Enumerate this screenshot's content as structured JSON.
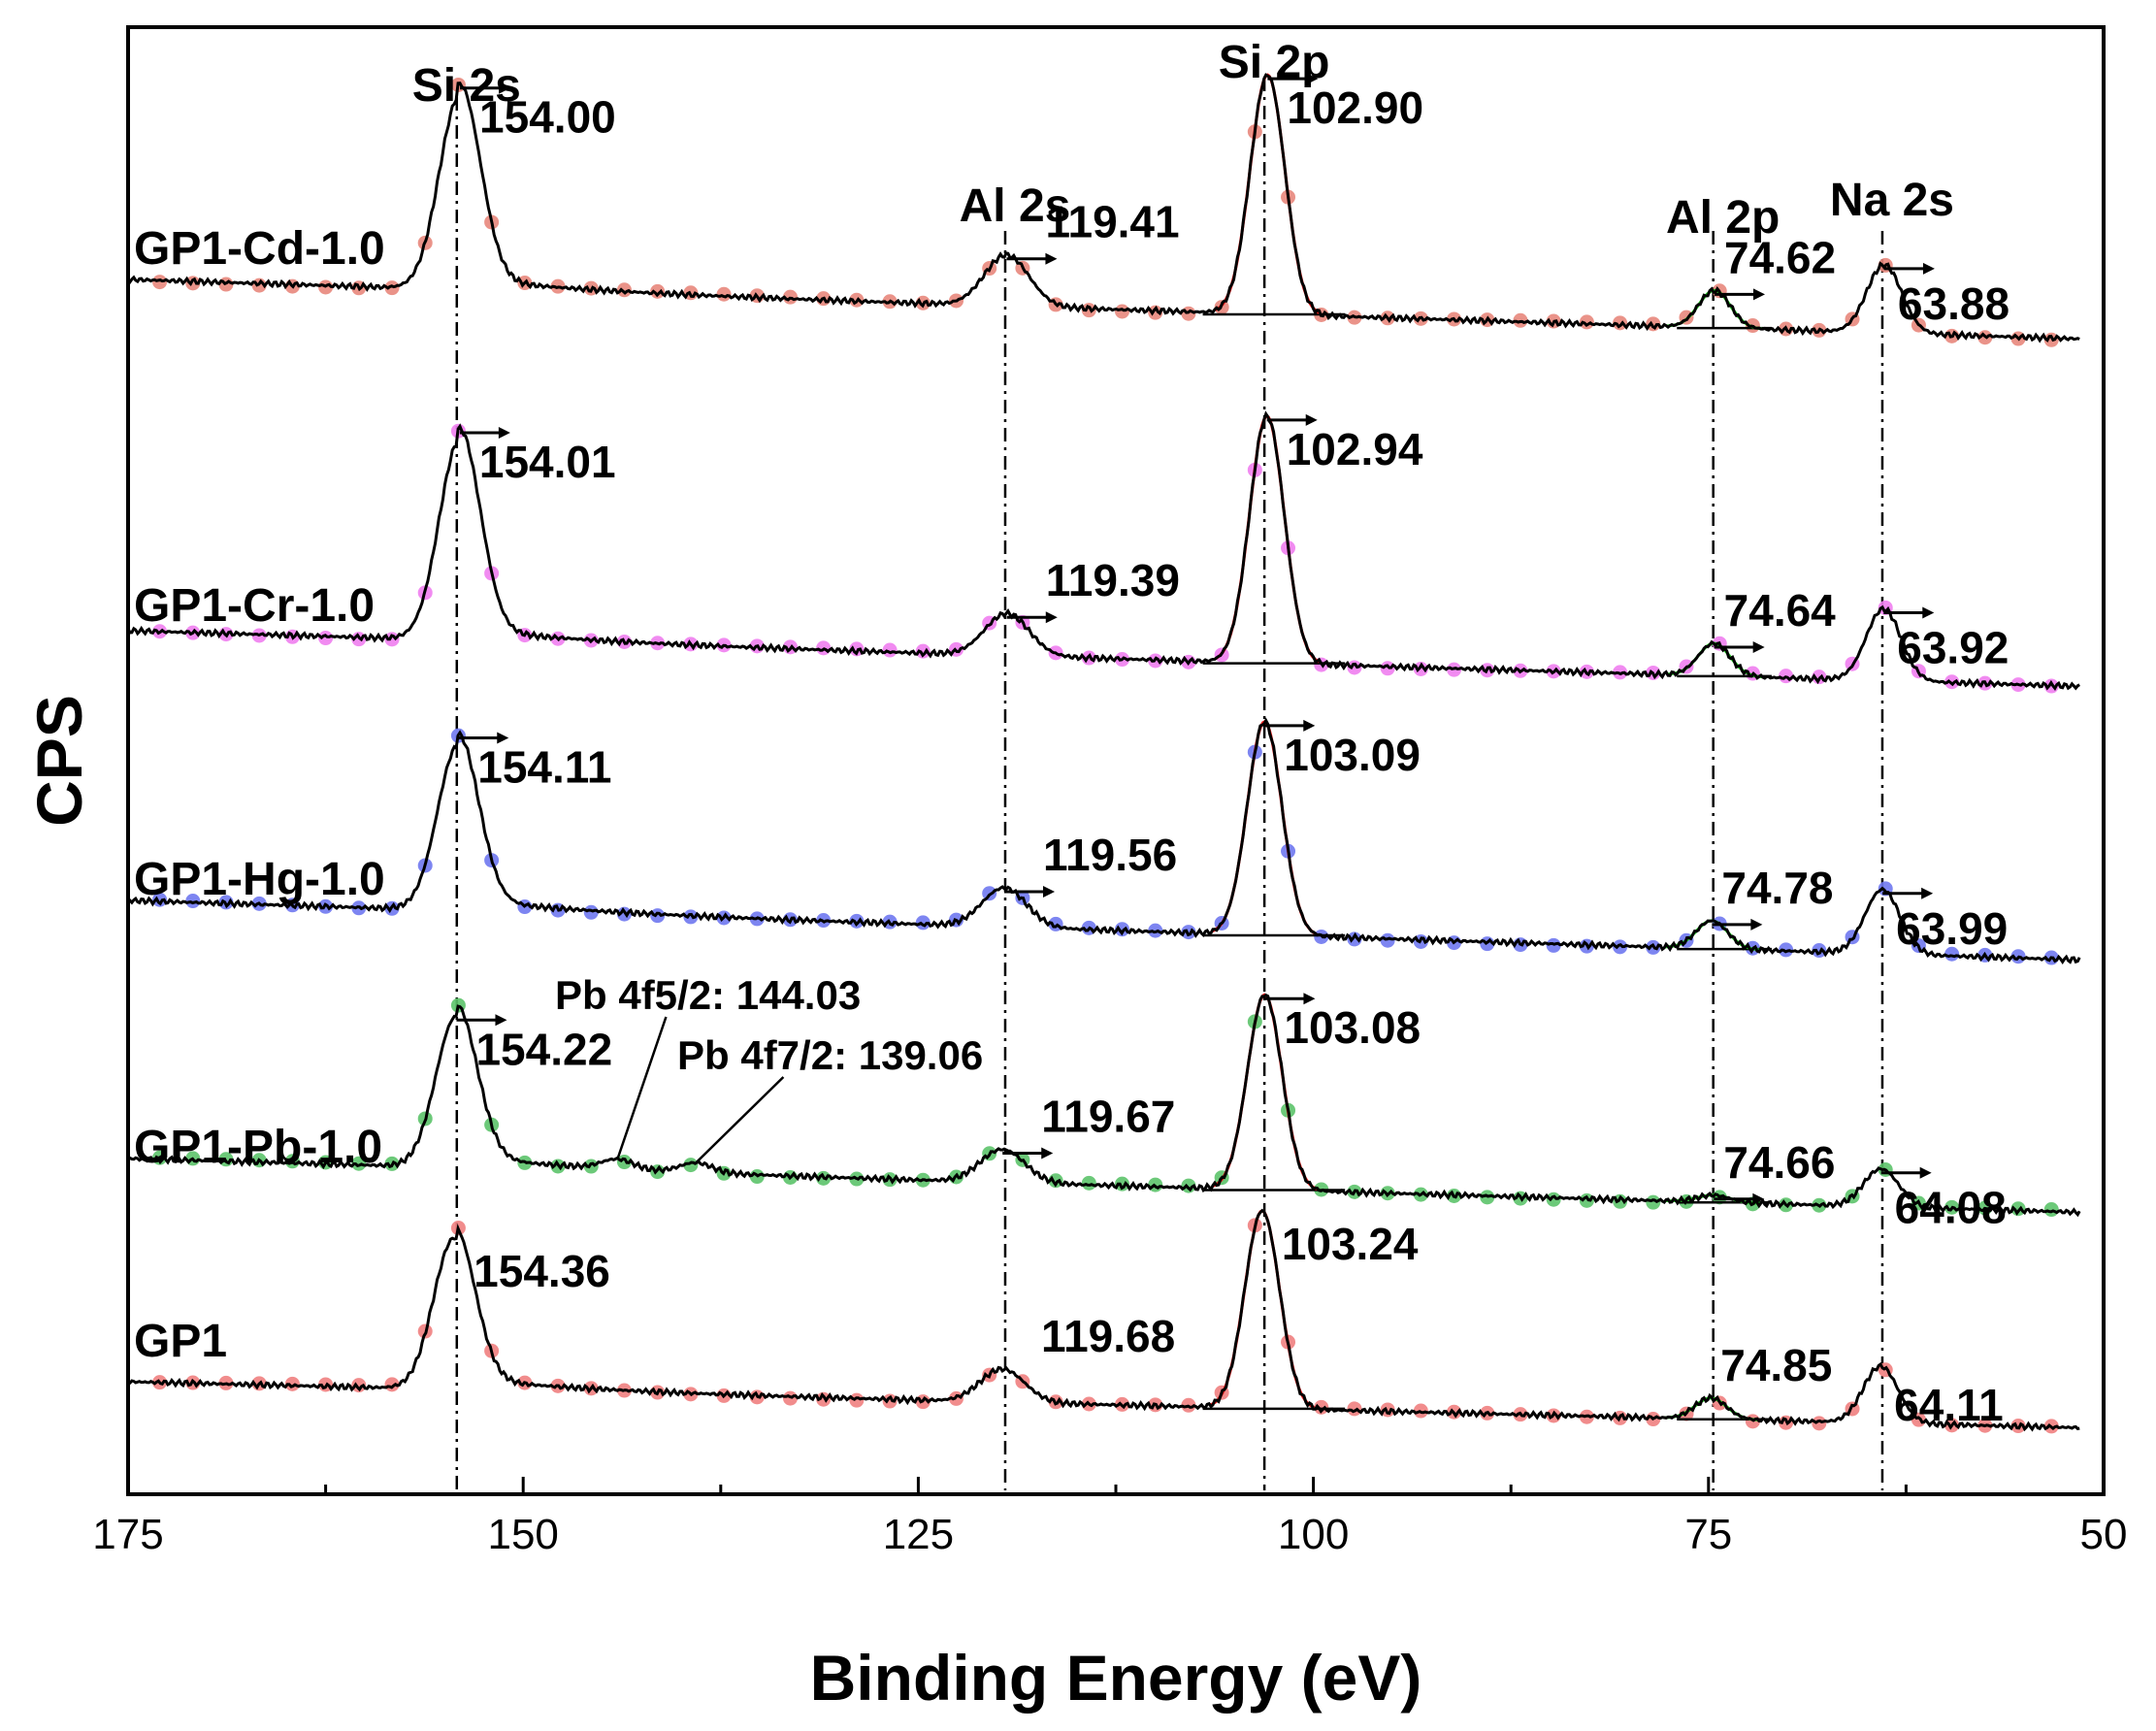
{
  "chart_data": {
    "type": "line",
    "title": "",
    "xlabel": "Binding Energy (eV)",
    "ylabel": "CPS",
    "xlim": [
      175,
      50
    ],
    "reversed_x": true,
    "x_ticks": [
      "175",
      "150",
      "125",
      "100",
      "75",
      "50"
    ],
    "grid": false,
    "peak_labels": [
      {
        "name": "Si 2s",
        "x": 154.2
      },
      {
        "name": "Al 2s",
        "x": 119.5
      },
      {
        "name": "Si 2p",
        "x": 103.1
      },
      {
        "name": "Al 2p",
        "x": 74.7
      },
      {
        "name": "Na 2s",
        "x": 64.0
      }
    ],
    "series": [
      {
        "name": "GP1-Cd-1.0",
        "color": "#a50f15",
        "marker_color": "#e8877c",
        "si2s": 154.0,
        "si2s_label": "154.00",
        "al2s": 119.41,
        "al2s_label": "119.41",
        "si2p": 102.9,
        "si2p_label": "102.90",
        "al2p": 74.62,
        "al2p_label": "74.62",
        "na2s": 63.88,
        "na2s_label": "63.88"
      },
      {
        "name": "GP1-Cr-1.0",
        "color": "#ff33ff",
        "marker_color": "#f07ef0",
        "si2s": 154.01,
        "si2s_label": "154.01",
        "al2s": 119.39,
        "al2s_label": "119.39",
        "si2p": 102.94,
        "si2p_label": "102.94",
        "al2p": 74.64,
        "al2p_label": "74.64",
        "na2s": 63.92,
        "na2s_label": "63.92"
      },
      {
        "name": "GP1-Hg-1.0",
        "color": "#1f1fff",
        "marker_color": "#6f78f0",
        "si2s": 154.11,
        "si2s_label": "154.11",
        "al2s": 119.56,
        "al2s_label": "119.56",
        "si2p": 103.09,
        "si2p_label": "103.09",
        "al2p": 74.78,
        "al2p_label": "74.78",
        "na2s": 63.99,
        "na2s_label": "63.99"
      },
      {
        "name": "GP1-Pb-1.0",
        "color": "#1a9a1a",
        "marker_color": "#5cc36a",
        "si2s": 154.22,
        "si2s_label": "154.22",
        "al2s": 119.67,
        "al2s_label": "119.67",
        "si2p": 103.08,
        "si2p_label": "103.08",
        "al2p": 74.66,
        "al2p_label": "74.66",
        "na2s": 64.08,
        "na2s_label": "64.08",
        "pb_4f52": 144.03,
        "pb_4f52_label": "Pb 4f5/2: 144.03",
        "pb_4f72": 139.06,
        "pb_4f72_label": "Pb 4f7/2: 139.06"
      },
      {
        "name": "GP1",
        "color": "#ee1c1c",
        "marker_color": "#ef7f7f",
        "si2s": 154.36,
        "si2s_label": "154.36",
        "al2s": 119.68,
        "al2s_label": "119.68",
        "si2p": 103.24,
        "si2p_label": "103.24",
        "al2p": 74.85,
        "al2p_label": "74.85",
        "na2s": 64.11,
        "na2s_label": "64.11"
      }
    ]
  }
}
